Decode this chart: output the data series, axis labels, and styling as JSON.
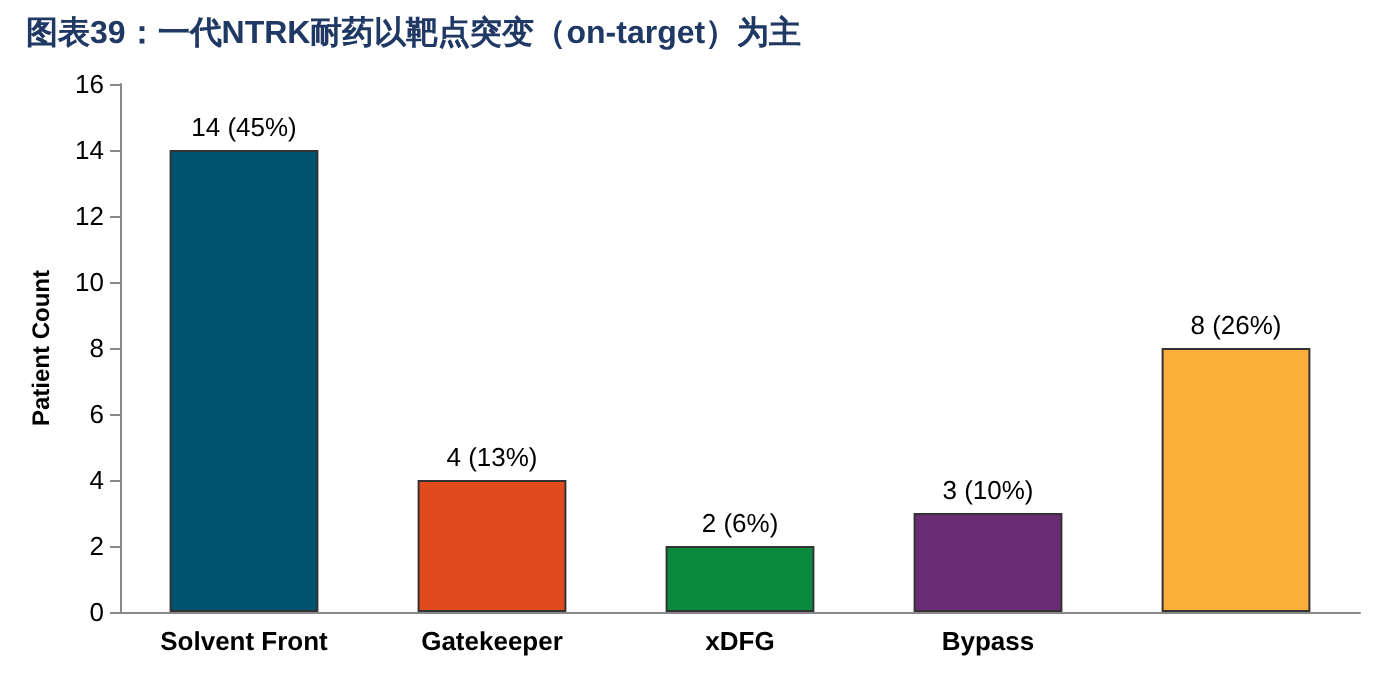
{
  "chart_data": {
    "type": "bar",
    "title": "图表39：一代NTRK耐药以靶点突变（on-target）为主",
    "ylabel": "Patient Count",
    "categories": [
      "Solvent Front",
      "Gatekeeper",
      "xDFG",
      "Bypass",
      null
    ],
    "values": [
      14,
      4,
      2,
      3,
      8
    ],
    "colors": [
      "#02536f",
      "#e14a1d",
      "#0a8a3c",
      "#6a2c75",
      "#fbb03b"
    ],
    "value_labels": [
      "14 (45%)",
      "4 (13%)",
      "2 (6%)",
      "3 (10%)",
      "8 (26%)"
    ],
    "ylim": [
      0,
      16
    ],
    "yticks": [
      0,
      2,
      4,
      6,
      8,
      10,
      12,
      14,
      16
    ],
    "grid": false
  }
}
